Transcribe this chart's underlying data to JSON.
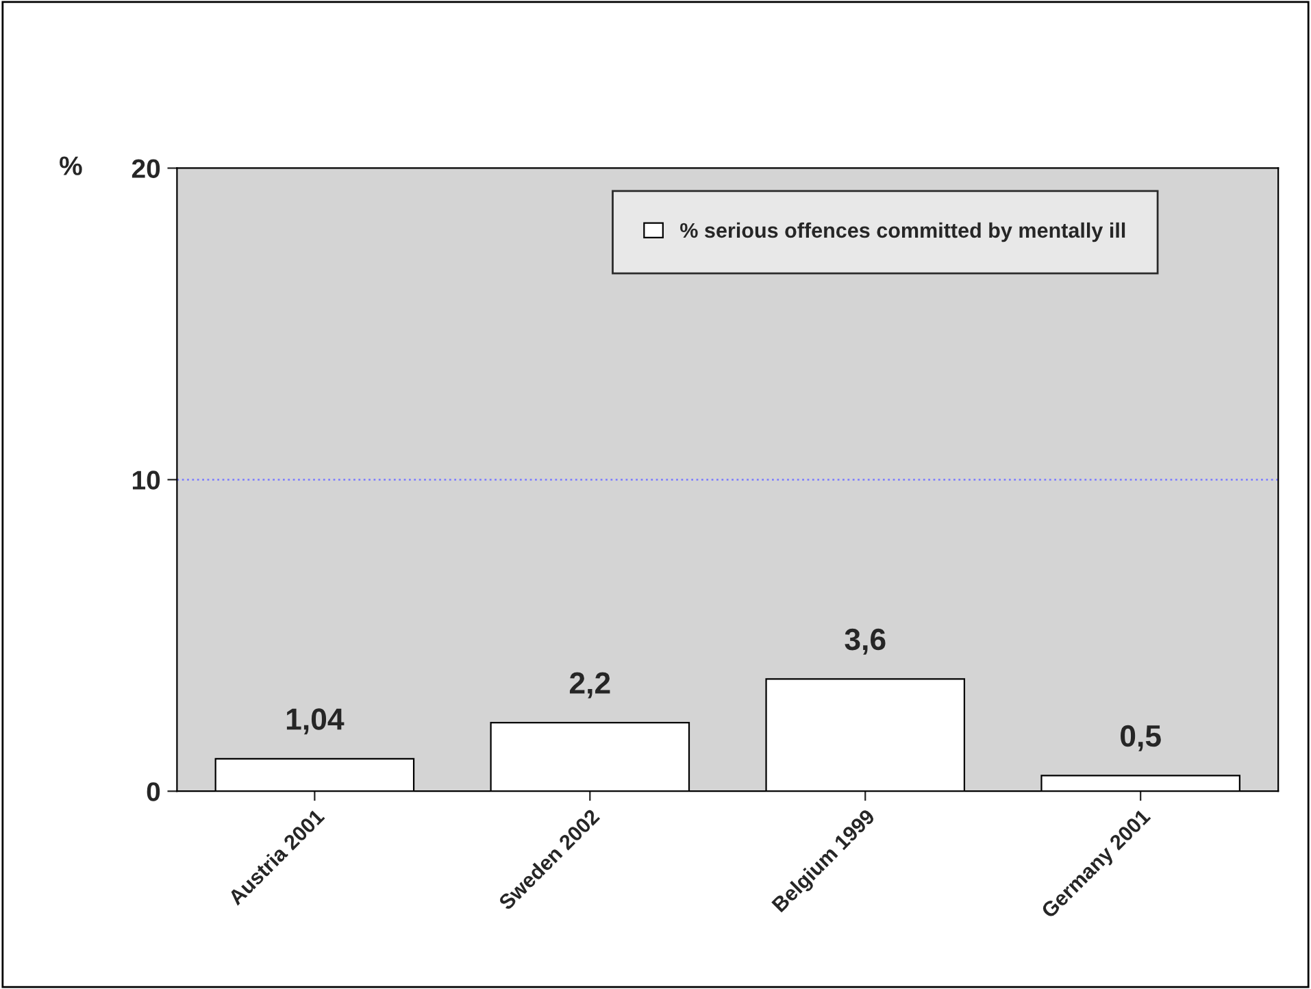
{
  "chart_data": {
    "type": "bar",
    "ylabel": "%",
    "categories": [
      "Austria 2001",
      "Sweden 2002",
      "Belgium 1999",
      "Germany 2001"
    ],
    "series": [
      {
        "name": "% serious offences committed by mentally ill",
        "color": "#ffffff",
        "values": [
          1.04,
          2.2,
          3.6,
          0.5
        ],
        "value_labels": [
          "1,04",
          "2,2",
          "3,6",
          "0,5"
        ]
      }
    ],
    "ylim": [
      0,
      20
    ],
    "yticks": [
      0,
      10,
      20
    ],
    "ref_lines": [
      {
        "axis": "y",
        "value": 10,
        "color": "#8080ff",
        "line_style": "dotted"
      }
    ],
    "legend": "top right"
  }
}
